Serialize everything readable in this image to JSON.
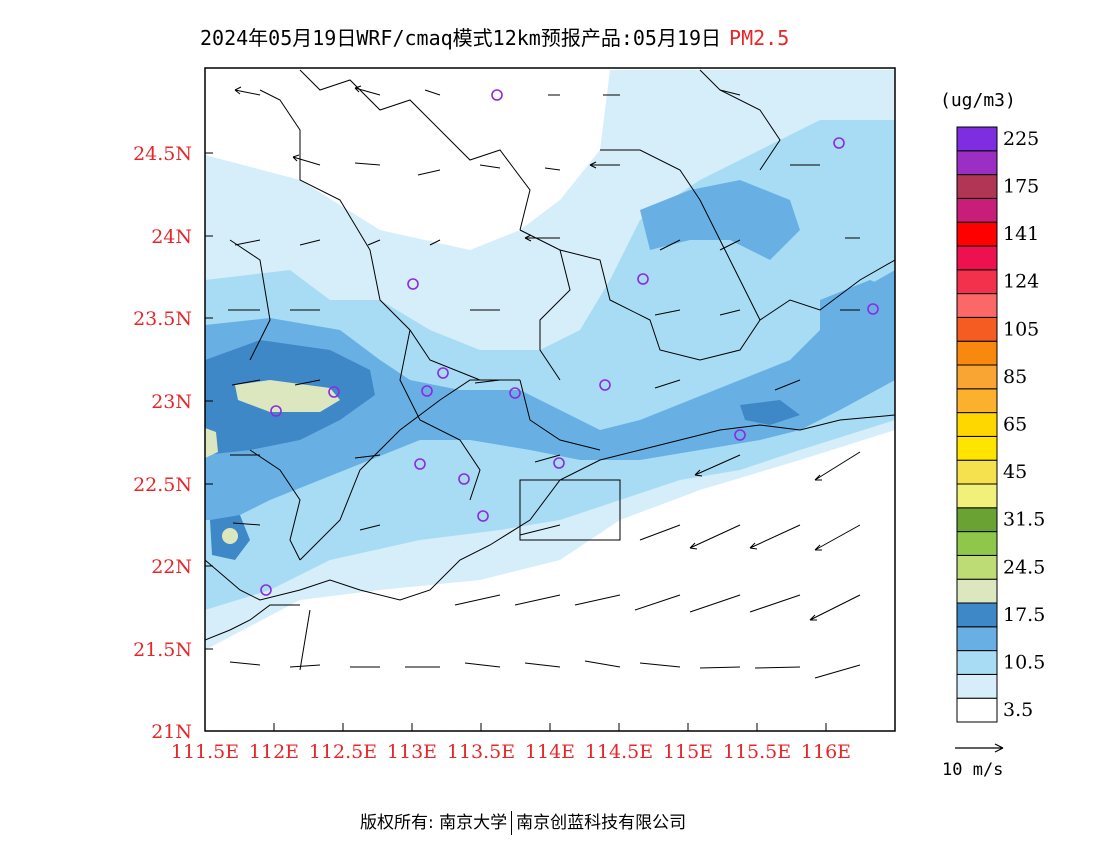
{
  "title": {
    "main": "2024年05月19日WRF/cmaq模式12km预报产品:05月19日",
    "product": "PM2.5"
  },
  "map": {
    "lon_ticks": [
      "111.5E",
      "112E",
      "112.5E",
      "113E",
      "113.5E",
      "114E",
      "114.5E",
      "115E",
      "115.5E",
      "116E"
    ],
    "lat_ticks": [
      "24.5N",
      "24N",
      "23.5N",
      "23N",
      "22.5N",
      "22N",
      "21.5N",
      "21N"
    ],
    "axis_label_color": "#e8262a"
  },
  "legend": {
    "unit": "(ug/m3)",
    "bins": [
      {
        "color": "#ffffff",
        "label": "3.5"
      },
      {
        "color": "#d6eef9",
        "label": ""
      },
      {
        "color": "#a8dcf5",
        "label": "10.5"
      },
      {
        "color": "#68b0e4",
        "label": ""
      },
      {
        "color": "#3f88c7",
        "label": "17.5"
      },
      {
        "color": "#dde7bf",
        "label": ""
      },
      {
        "color": "#bedc76",
        "label": "24.5"
      },
      {
        "color": "#8fc74a",
        "label": ""
      },
      {
        "color": "#6aa233",
        "label": "31.5"
      },
      {
        "color": "#f0f07a",
        "label": ""
      },
      {
        "color": "#f5e04e",
        "label": "45"
      },
      {
        "color": "#ffe400",
        "label": ""
      },
      {
        "color": "#ffd700",
        "label": "65"
      },
      {
        "color": "#fbb02e",
        "label": ""
      },
      {
        "color": "#f8a534",
        "label": "85"
      },
      {
        "color": "#f9890e",
        "label": ""
      },
      {
        "color": "#f45c22",
        "label": "105"
      },
      {
        "color": "#fc6868",
        "label": ""
      },
      {
        "color": "#f4314c",
        "label": "124"
      },
      {
        "color": "#ed1150",
        "label": ""
      },
      {
        "color": "#fe0000",
        "label": "141"
      },
      {
        "color": "#c81e7a",
        "label": ""
      },
      {
        "color": "#b13555",
        "label": "175"
      },
      {
        "color": "#9b2fc4",
        "label": ""
      },
      {
        "color": "#7e2ee0",
        "label": "225"
      }
    ]
  },
  "wind_reference": {
    "label": "10 m/s"
  },
  "copyright": {
    "left": "版权所有: 南京大学",
    "right": "南京创蓝科技有限公司"
  }
}
